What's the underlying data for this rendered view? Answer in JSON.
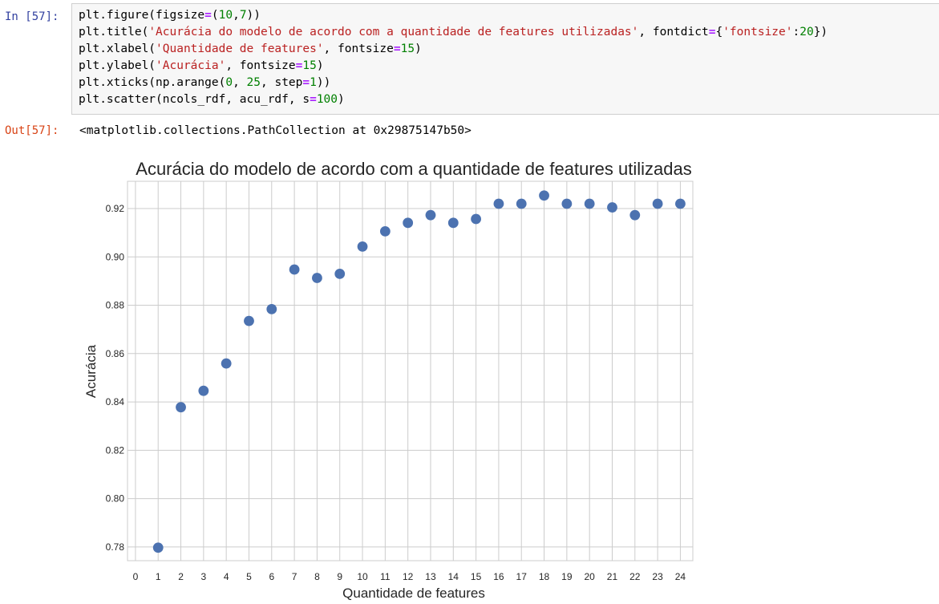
{
  "cell": {
    "in_prompt": "In [57]:",
    "out_prompt": "Out[57]:",
    "code_lines": [
      [
        {
          "t": "plt.figure(figsize"
        },
        {
          "t": "=",
          "c": "op"
        },
        {
          "t": "("
        },
        {
          "t": "10",
          "c": "num"
        },
        {
          "t": ","
        },
        {
          "t": "7",
          "c": "num"
        },
        {
          "t": "))"
        }
      ],
      [
        {
          "t": "plt.title("
        },
        {
          "t": "'Acurácia do modelo de acordo com a quantidade de features utilizadas'",
          "c": "str"
        },
        {
          "t": ", fontdict"
        },
        {
          "t": "=",
          "c": "op"
        },
        {
          "t": "{"
        },
        {
          "t": "'fontsize'",
          "c": "str"
        },
        {
          "t": ":"
        },
        {
          "t": "20",
          "c": "num"
        },
        {
          "t": "})"
        }
      ],
      [
        {
          "t": "plt.xlabel("
        },
        {
          "t": "'Quantidade de features'",
          "c": "str"
        },
        {
          "t": ", fontsize"
        },
        {
          "t": "=",
          "c": "op"
        },
        {
          "t": "15",
          "c": "num"
        },
        {
          "t": ")"
        }
      ],
      [
        {
          "t": "plt.ylabel("
        },
        {
          "t": "'Acurácia'",
          "c": "str"
        },
        {
          "t": ", fontsize"
        },
        {
          "t": "=",
          "c": "op"
        },
        {
          "t": "15",
          "c": "num"
        },
        {
          "t": ")"
        }
      ],
      [
        {
          "t": "plt.xticks(np.arange("
        },
        {
          "t": "0",
          "c": "num"
        },
        {
          "t": ", "
        },
        {
          "t": "25",
          "c": "num"
        },
        {
          "t": ", step"
        },
        {
          "t": "=",
          "c": "op"
        },
        {
          "t": "1",
          "c": "num"
        },
        {
          "t": "))"
        }
      ],
      [
        {
          "t": "plt.scatter(ncols_rdf, acu_rdf, s"
        },
        {
          "t": "=",
          "c": "op"
        },
        {
          "t": "100",
          "c": "num"
        },
        {
          "t": ")"
        }
      ]
    ],
    "output_text": "<matplotlib.collections.PathCollection at 0x29875147b50>"
  },
  "colors": {
    "marker": "#4c72b0",
    "grid": "#cccccc",
    "string": "#ba2121",
    "number": "#008000",
    "operator": "#aa22ff"
  },
  "chart_data": {
    "type": "scatter",
    "title": "Acurácia do modelo de acordo com a quantidade de features utilizadas",
    "xlabel": "Quantidade de features",
    "ylabel": "Acurácia",
    "x_ticks": [
      0,
      1,
      2,
      3,
      4,
      5,
      6,
      7,
      8,
      9,
      10,
      11,
      12,
      13,
      14,
      15,
      16,
      17,
      18,
      19,
      20,
      21,
      22,
      23,
      24
    ],
    "y_ticks": [
      0.78,
      0.8,
      0.82,
      0.84,
      0.86,
      0.88,
      0.9,
      0.92
    ],
    "y_tick_labels": [
      "0.78",
      "0.80",
      "0.82",
      "0.84",
      "0.86",
      "0.88",
      "0.90",
      "0.92"
    ],
    "xlim": [
      -0.35,
      24.55
    ],
    "ylim": [
      0.7743,
      0.9313
    ],
    "grid": true,
    "x": [
      1,
      2,
      3,
      4,
      5,
      6,
      7,
      8,
      9,
      10,
      11,
      12,
      13,
      14,
      15,
      16,
      17,
      18,
      19,
      20,
      21,
      22,
      23,
      24
    ],
    "y": [
      0.7797,
      0.8378,
      0.8446,
      0.8559,
      0.8735,
      0.8784,
      0.8948,
      0.8913,
      0.893,
      0.9043,
      0.9106,
      0.9141,
      0.9173,
      0.9141,
      0.9157,
      0.922,
      0.922,
      0.9254,
      0.922,
      0.922,
      0.9205,
      0.9173,
      0.922,
      0.922
    ]
  }
}
